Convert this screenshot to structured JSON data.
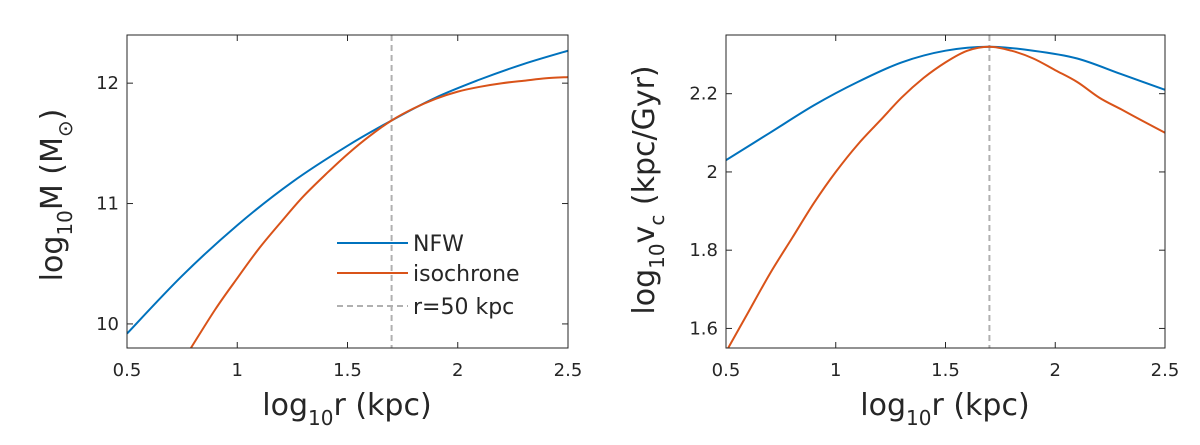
{
  "chart_data": [
    {
      "type": "line",
      "xlabel": "log10r (kpc)",
      "xlabel_parts": {
        "main": "log",
        "sub": "10",
        "rest": "r (kpc)"
      },
      "ylabel": "log10M (M☉)",
      "ylabel_parts": {
        "main": "log",
        "sub": "10",
        "rest1": "M (M",
        "sub2": "⊙",
        "rest2": ")"
      },
      "xlim": [
        0.5,
        2.5
      ],
      "ylim": [
        9.8,
        12.4
      ],
      "xticks": [
        0.5,
        1,
        1.5,
        2,
        2.5
      ],
      "xtick_labels": [
        "0.5",
        "1",
        "1.5",
        "2",
        "2.5"
      ],
      "yticks": [
        10,
        11,
        12
      ],
      "ytick_labels": [
        "10",
        "11",
        "12"
      ],
      "vline": {
        "x": 1.7,
        "label": "r=50 kpc",
        "color": "#b0b0b0"
      },
      "legend": {
        "position": "bottom-right",
        "entries": [
          "NFW",
          "isochrone",
          "r=50 kpc"
        ]
      },
      "series": [
        {
          "name": "NFW",
          "color": "#0072bd",
          "x": [
            0.5,
            0.75,
            1.0,
            1.25,
            1.5,
            1.7,
            1.9,
            2.1,
            2.3,
            2.5
          ],
          "y": [
            9.92,
            10.4,
            10.82,
            11.18,
            11.48,
            11.69,
            11.88,
            12.03,
            12.16,
            12.27
          ]
        },
        {
          "name": "isochrone",
          "color": "#d95319",
          "x": [
            0.79,
            0.9,
            1.0,
            1.1,
            1.2,
            1.3,
            1.4,
            1.5,
            1.6,
            1.7,
            1.8,
            1.9,
            2.0,
            2.1,
            2.2,
            2.3,
            2.4,
            2.5
          ],
          "y": [
            9.8,
            10.12,
            10.38,
            10.63,
            10.85,
            11.06,
            11.24,
            11.41,
            11.56,
            11.69,
            11.79,
            11.87,
            11.93,
            11.97,
            12.0,
            12.02,
            12.04,
            12.05
          ]
        }
      ]
    },
    {
      "type": "line",
      "xlabel": "log10r (kpc)",
      "xlabel_parts": {
        "main": "log",
        "sub": "10",
        "rest": "r (kpc)"
      },
      "ylabel": "log10vc (kpc/Gyr)",
      "ylabel_parts": {
        "main": "log",
        "sub": "10",
        "rest1": "v",
        "sub2": "c",
        "rest2": " (kpc/Gyr)"
      },
      "xlim": [
        0.5,
        2.5
      ],
      "ylim": [
        1.55,
        2.35
      ],
      "xticks": [
        0.5,
        1,
        1.5,
        2,
        2.5
      ],
      "xtick_labels": [
        "0.5",
        "1",
        "1.5",
        "2",
        "2.5"
      ],
      "yticks": [
        1.6,
        1.8,
        2,
        2.2
      ],
      "ytick_labels": [
        "1.6",
        "1.8",
        "2",
        "2.2"
      ],
      "vline": {
        "x": 1.7,
        "label": "r=50 kpc",
        "color": "#b0b0b0"
      },
      "series": [
        {
          "name": "NFW",
          "color": "#0072bd",
          "x": [
            0.5,
            0.7,
            0.9,
            1.1,
            1.3,
            1.5,
            1.7,
            1.9,
            2.1,
            2.3,
            2.5
          ],
          "y": [
            2.03,
            2.1,
            2.17,
            2.23,
            2.28,
            2.31,
            2.32,
            2.31,
            2.29,
            2.25,
            2.21
          ]
        },
        {
          "name": "isochrone",
          "color": "#d95319",
          "x": [
            0.5,
            0.6,
            0.7,
            0.8,
            0.9,
            1.0,
            1.1,
            1.2,
            1.3,
            1.4,
            1.5,
            1.6,
            1.7,
            1.8,
            1.9,
            2.0,
            2.1,
            2.2,
            2.3,
            2.4,
            2.5
          ],
          "y": [
            1.54,
            1.64,
            1.74,
            1.83,
            1.92,
            2.0,
            2.07,
            2.13,
            2.19,
            2.24,
            2.28,
            2.31,
            2.32,
            2.31,
            2.29,
            2.26,
            2.23,
            2.19,
            2.16,
            2.13,
            2.1
          ]
        }
      ]
    }
  ]
}
